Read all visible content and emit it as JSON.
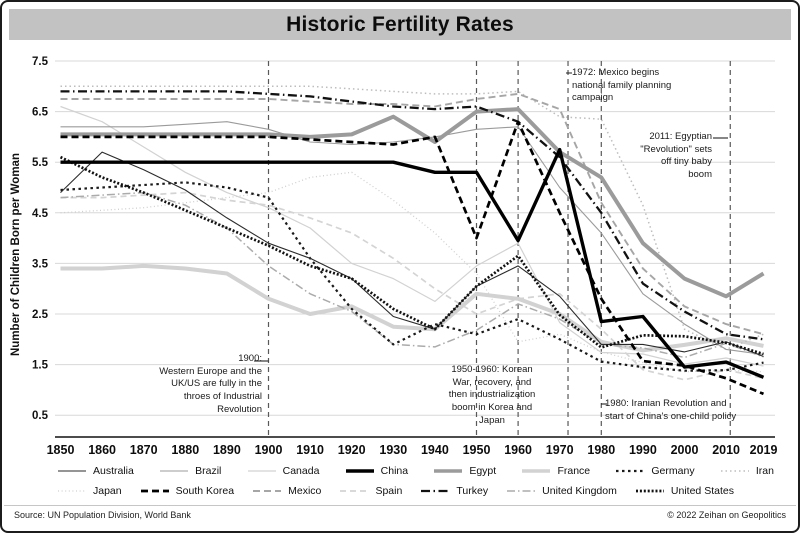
{
  "title": "Historic Fertility Rates",
  "y_axis": {
    "label": "Number of Children Born per Woman",
    "ticks": [
      7.5,
      6.5,
      5.5,
      4.5,
      3.5,
      2.5,
      1.5,
      0.5
    ]
  },
  "x_axis": {
    "ticks": [
      1850,
      1860,
      1870,
      1880,
      1890,
      1900,
      1910,
      1920,
      1930,
      1940,
      1950,
      1960,
      1970,
      1980,
      1990,
      2000,
      2010,
      2019
    ]
  },
  "chart_data": {
    "type": "line",
    "title": "Historic Fertility Rates",
    "xlabel": "",
    "ylabel": "Number of Children Born per Woman",
    "ylim": [
      0.5,
      7.5
    ],
    "xlim": [
      1850,
      2019
    ],
    "grid": true,
    "legend_position": "bottom",
    "x": [
      1850,
      1860,
      1870,
      1880,
      1890,
      1900,
      1910,
      1920,
      1930,
      1940,
      1950,
      1960,
      1970,
      1980,
      1990,
      2000,
      2010,
      2019
    ],
    "series": [
      {
        "name": "Australia",
        "color": "#2b2b2b",
        "width": 1.1,
        "dash": "",
        "z": 11,
        "values": [
          4.9,
          5.7,
          5.35,
          4.95,
          4.4,
          3.9,
          3.6,
          3.2,
          2.45,
          2.2,
          3.05,
          3.45,
          2.85,
          1.9,
          1.9,
          1.75,
          1.95,
          1.66
        ]
      },
      {
        "name": "Brazil",
        "color": "#9b9b9b",
        "width": 1.1,
        "dash": "",
        "z": 6,
        "values": [
          6.2,
          6.2,
          6.2,
          6.25,
          6.3,
          6.15,
          5.9,
          5.85,
          5.9,
          6.0,
          6.15,
          6.2,
          5.0,
          4.1,
          2.9,
          2.3,
          1.8,
          1.7
        ]
      },
      {
        "name": "Canada",
        "color": "#d2d2d2",
        "width": 1.2,
        "dash": "",
        "z": 2,
        "values": [
          6.6,
          6.3,
          5.8,
          5.3,
          4.9,
          4.6,
          4.2,
          3.5,
          3.2,
          2.75,
          3.45,
          3.9,
          2.33,
          1.74,
          1.71,
          1.51,
          1.63,
          1.47
        ]
      },
      {
        "name": "China",
        "color": "#000000",
        "width": 3.4,
        "dash": "",
        "z": 15,
        "values": [
          5.5,
          5.5,
          5.5,
          5.5,
          5.5,
          5.5,
          5.5,
          5.5,
          5.5,
          5.3,
          5.3,
          3.95,
          5.75,
          2.35,
          2.45,
          1.45,
          1.55,
          1.25
        ]
      },
      {
        "name": "Egypt",
        "color": "#9b9b9b",
        "width": 4,
        "dash": "",
        "z": 9,
        "values": [
          6.05,
          6.05,
          6.05,
          6.05,
          6.05,
          6.05,
          6.0,
          6.05,
          6.4,
          5.9,
          6.5,
          6.55,
          5.7,
          5.2,
          3.9,
          3.2,
          2.85,
          3.3
        ]
      },
      {
        "name": "France",
        "color": "#d2d2d2",
        "width": 4,
        "dash": "",
        "z": 4,
        "values": [
          3.4,
          3.4,
          3.45,
          3.4,
          3.3,
          2.8,
          2.5,
          2.65,
          2.25,
          2.2,
          2.9,
          2.8,
          2.5,
          1.95,
          1.78,
          1.89,
          2.02,
          1.87
        ]
      },
      {
        "name": "Germany",
        "color": "#1a1a1a",
        "width": 2.2,
        "dash": "2.5 3.5",
        "z": 10,
        "values": [
          4.95,
          5.0,
          5.05,
          5.1,
          5.0,
          4.8,
          3.6,
          2.6,
          1.9,
          2.3,
          2.1,
          2.4,
          2.0,
          1.56,
          1.45,
          1.38,
          1.39,
          1.54
        ]
      },
      {
        "name": "Iran",
        "color": "#bdbdbd",
        "width": 1.5,
        "dash": "1.5 3",
        "z": 5,
        "values": [
          7.0,
          7.0,
          7.0,
          7.0,
          7.0,
          7.0,
          7.0,
          6.95,
          6.9,
          6.85,
          6.85,
          6.9,
          6.4,
          6.35,
          4.65,
          2.2,
          1.8,
          2.1
        ]
      },
      {
        "name": "Japan",
        "color": "#cfcfcf",
        "width": 1.3,
        "dash": "1 2.6",
        "z": 1,
        "values": [
          4.5,
          4.55,
          4.6,
          4.7,
          4.8,
          4.9,
          5.2,
          5.3,
          4.75,
          4.1,
          3.3,
          1.95,
          2.1,
          1.75,
          1.54,
          1.36,
          1.39,
          1.36
        ]
      },
      {
        "name": "South Korea",
        "color": "#000000",
        "width": 2.7,
        "dash": "7 4",
        "z": 14,
        "values": [
          6.0,
          6.0,
          6.0,
          6.0,
          6.0,
          6.0,
          5.95,
          5.9,
          5.85,
          6.0,
          4.0,
          6.3,
          4.5,
          2.8,
          1.57,
          1.48,
          1.23,
          0.92
        ]
      },
      {
        "name": "Mexico",
        "color": "#a6a6a6",
        "width": 1.9,
        "dash": "7 4",
        "z": 7,
        "values": [
          6.75,
          6.75,
          6.75,
          6.75,
          6.75,
          6.75,
          6.7,
          6.65,
          6.65,
          6.6,
          6.75,
          6.85,
          6.55,
          4.7,
          3.4,
          2.65,
          2.3,
          2.1
        ]
      },
      {
        "name": "Spain",
        "color": "#d4d4d4",
        "width": 1.7,
        "dash": "6 4",
        "z": 3,
        "values": [
          4.8,
          4.8,
          4.85,
          4.9,
          4.75,
          4.65,
          4.4,
          4.1,
          3.6,
          3.0,
          2.5,
          2.8,
          2.9,
          2.2,
          1.4,
          1.2,
          1.4,
          1.23
        ]
      },
      {
        "name": "Turkey",
        "color": "#111111",
        "width": 2.3,
        "dash": "9 3.5 1.5 3.5",
        "z": 13,
        "values": [
          6.9,
          6.9,
          6.9,
          6.9,
          6.9,
          6.85,
          6.8,
          6.7,
          6.6,
          6.55,
          6.6,
          6.3,
          5.6,
          4.5,
          3.1,
          2.55,
          2.1,
          2.0
        ]
      },
      {
        "name": "United Kingdom",
        "color": "#ababab",
        "width": 1.5,
        "dash": "8 3 1.5 3",
        "z": 8,
        "values": [
          4.8,
          4.85,
          4.9,
          4.65,
          4.2,
          3.45,
          2.9,
          2.55,
          1.9,
          1.85,
          2.18,
          2.7,
          2.4,
          1.9,
          1.83,
          1.64,
          1.92,
          1.65
        ]
      },
      {
        "name": "United States",
        "color": "#111111",
        "width": 2.7,
        "dash": "2 1.9",
        "z": 12,
        "values": [
          5.6,
          5.2,
          4.9,
          4.55,
          4.2,
          3.85,
          3.45,
          3.2,
          2.6,
          2.2,
          3.05,
          3.65,
          2.48,
          1.84,
          2.08,
          2.06,
          1.93,
          1.71
        ]
      }
    ],
    "event_lines": [
      1900,
      1950,
      1960,
      1972,
      1980,
      2011
    ]
  },
  "annotations": [
    {
      "id": "1900",
      "align": "right",
      "text": "1900:\nWestern Europe and the\nUK/US are fully in the\nthroes of Industrial\nRevolution"
    },
    {
      "id": "1950-1960",
      "align": "center",
      "text": "1950-1960: Korean\nWar, recovery, and\nthen industrialization\nboom in Korea and\nJapan"
    },
    {
      "id": "1972",
      "align": "left",
      "text": "1972: Mexico begins\nnational family planning\ncampaign"
    },
    {
      "id": "1980",
      "align": "left",
      "text": "1980: Iranian Revolution and\nstart of China's one-child policy"
    },
    {
      "id": "2011",
      "align": "right",
      "text": "2011: Egyptian\n\"Revolution\" sets\noff tiny baby\nboom"
    }
  ],
  "footer": {
    "source": "Source: UN Population Division, World Bank",
    "copyright": "© 2022 Zeihan on Geopolitics"
  }
}
